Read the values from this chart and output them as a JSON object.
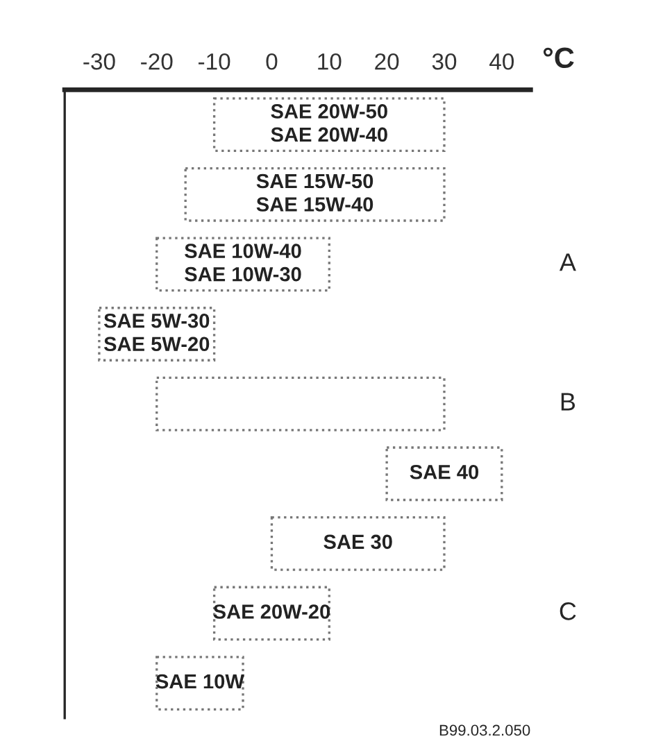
{
  "chart_data": {
    "type": "bar",
    "orientation": "horizontal",
    "xlabel": "°C",
    "categories": [
      "SAE 20W-50\nSAE 20W-40",
      "SAE 15W-50\nSAE 15W-40",
      "SAE 10W-40\nSAE 10W-30",
      "SAE 5W-30\nSAE 5W-20",
      null,
      "SAE 40",
      "SAE 30",
      "SAE 20W-20",
      "SAE 10W"
    ],
    "base": [
      -10,
      -15,
      -20,
      -30,
      -20,
      20,
      0,
      -10,
      -20
    ],
    "values": [
      40,
      45,
      30,
      20,
      50,
      20,
      30,
      20,
      15
    ],
    "color": "#ffffff",
    "xlim": [
      -36,
      45
    ],
    "xticks": [
      -30,
      -20,
      -10,
      0,
      10,
      20,
      30,
      40
    ],
    "grid": false,
    "legend": false,
    "annotations": [
      "A",
      "B",
      "C",
      "B99.03.2.050"
    ]
  }
}
